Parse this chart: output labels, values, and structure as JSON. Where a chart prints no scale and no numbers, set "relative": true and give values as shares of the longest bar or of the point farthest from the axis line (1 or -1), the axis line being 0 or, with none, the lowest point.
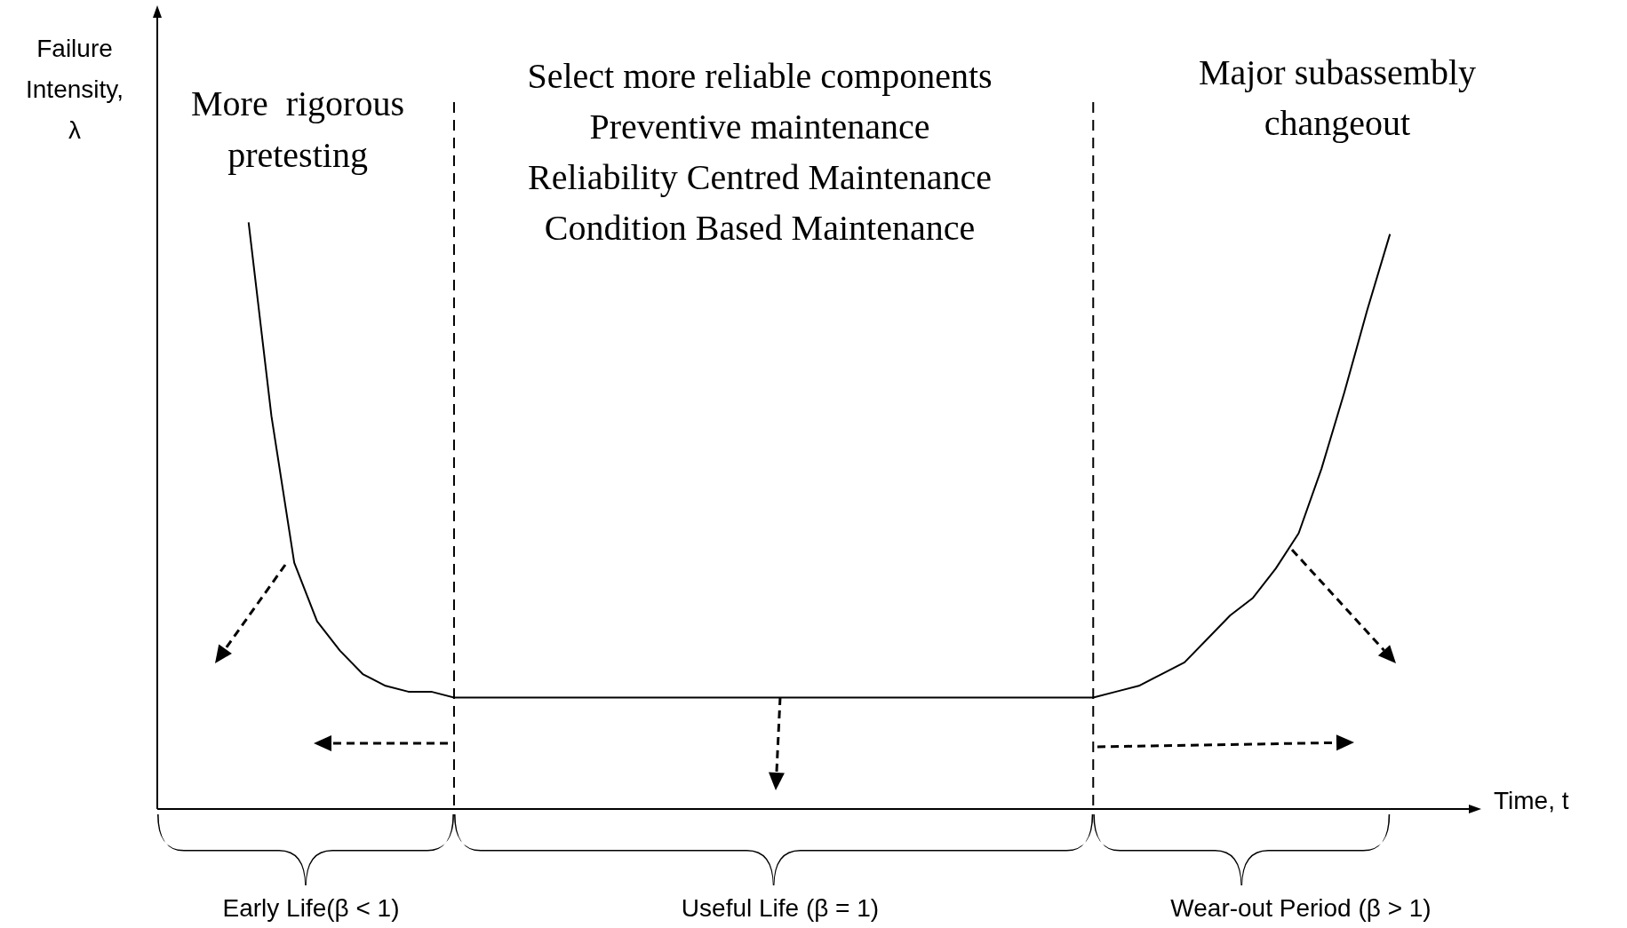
{
  "chart_data": {
    "type": "line",
    "relative": true,
    "ylabel": "Failure\nIntensity,\nλ",
    "xlabel": "Time, t",
    "color": "#000000",
    "marker": "none",
    "line_style": "solid",
    "categories": [
      null,
      null,
      null,
      null,
      null,
      null,
      null,
      null,
      null,
      null,
      null,
      null,
      null,
      null,
      null,
      null,
      null,
      null,
      null,
      null,
      null,
      null,
      null,
      null,
      null,
      null,
      null,
      null,
      null,
      null,
      null,
      null,
      null,
      null,
      null,
      null,
      null,
      null,
      null,
      null,
      null,
      null,
      null,
      null,
      null,
      null,
      null,
      null,
      null,
      null,
      null,
      null,
      null,
      null,
      null,
      null,
      null,
      null,
      null
    ],
    "values": [
      null,
      null,
      null,
      null,
      1.0,
      0.67,
      0.42,
      0.32,
      0.27,
      0.23,
      0.21,
      0.2,
      0.2,
      0.19,
      0.19,
      0.19,
      0.19,
      0.19,
      0.19,
      0.19,
      0.19,
      0.19,
      0.19,
      0.19,
      0.19,
      0.19,
      0.19,
      0.19,
      0.19,
      0.19,
      0.19,
      0.19,
      0.19,
      0.19,
      0.19,
      0.19,
      0.19,
      0.19,
      0.19,
      0.19,
      0.19,
      0.19,
      0.2,
      0.21,
      0.23,
      0.25,
      0.29,
      0.33,
      0.36,
      0.41,
      0.47,
      0.58,
      0.71,
      0.85,
      0.98,
      null,
      null,
      null,
      null
    ],
    "annotations": [
      "More  rigorous\npretesting",
      "Select more reliable components\nPreventive maintenance\nReliability Centred Maintenance\nCondition Based Maintenance",
      "Major subassembly\nchangeout",
      "Early Life(β < 1)",
      "Useful Life (β = 1)",
      "Wear-out Period (β > 1)"
    ]
  }
}
